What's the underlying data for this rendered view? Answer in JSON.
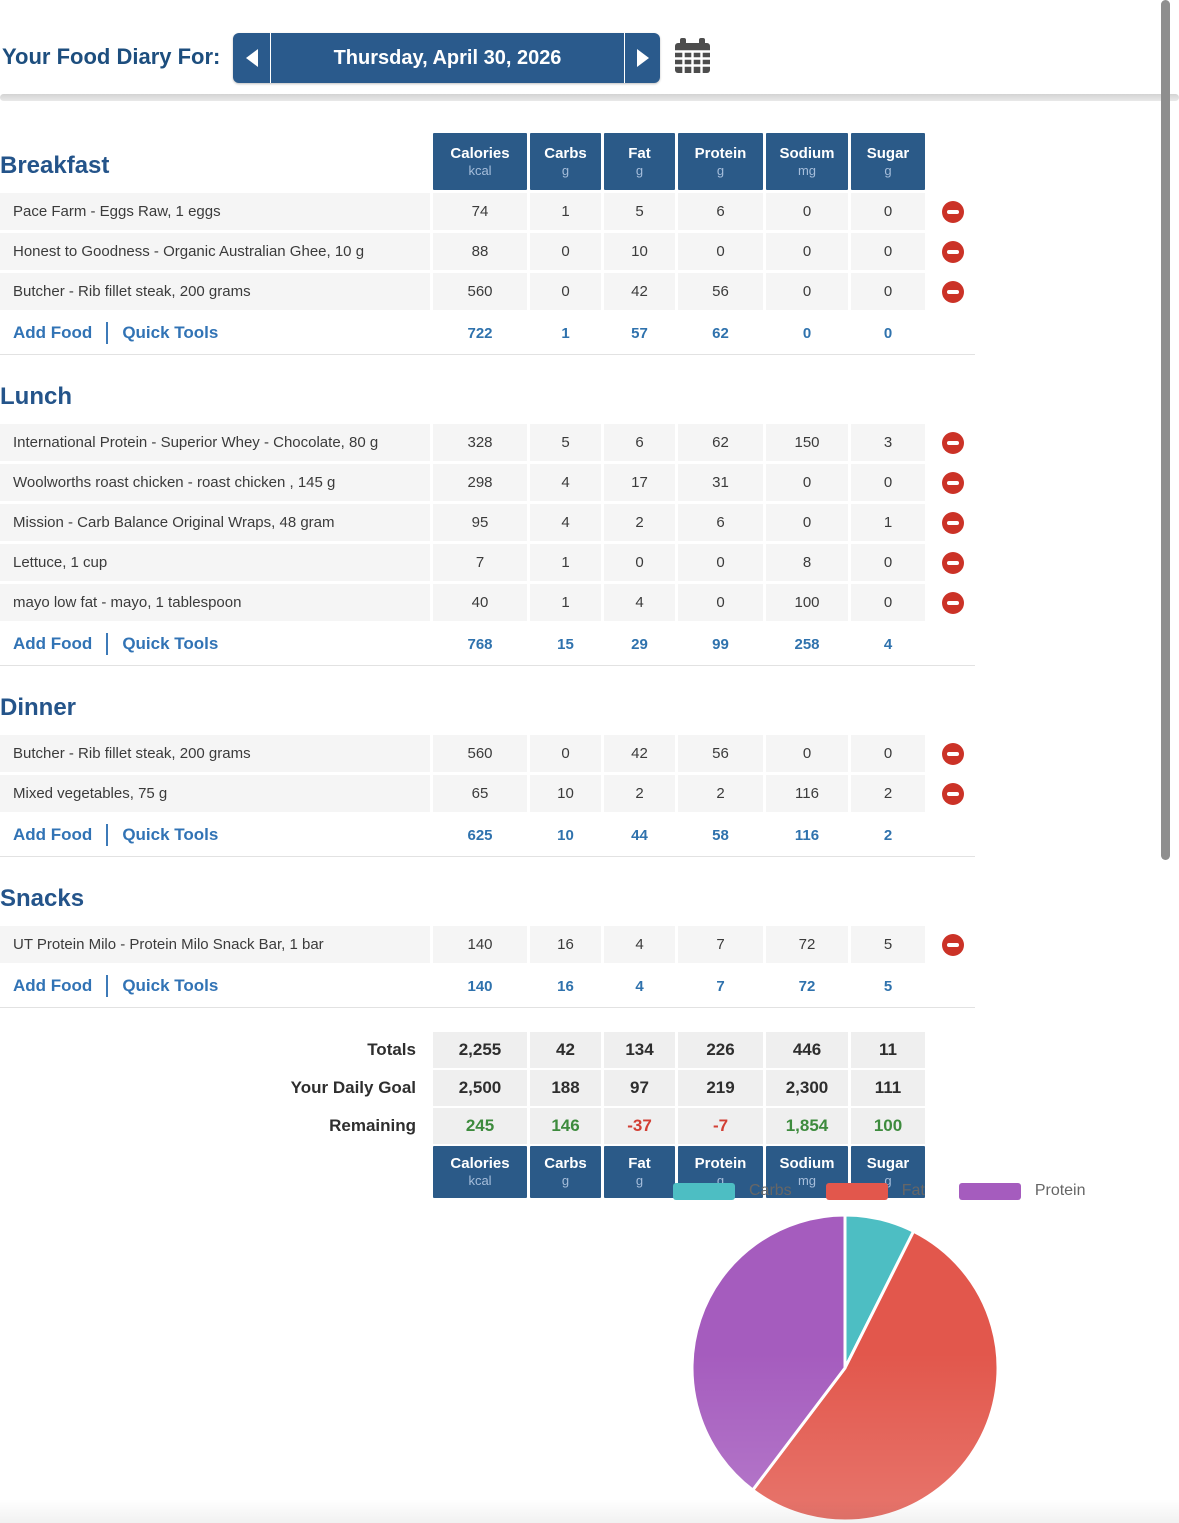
{
  "header": {
    "title": "Your Food Diary For:",
    "date_display": "Thursday, April 30, 2026",
    "prev_icon": "left-arrow",
    "next_icon": "right-arrow",
    "calendar_icon": "calendar",
    "accent_color": "#2a5a8c"
  },
  "columns": [
    {
      "label": "Calories",
      "unit": "kcal"
    },
    {
      "label": "Carbs",
      "unit": "g"
    },
    {
      "label": "Fat",
      "unit": "g"
    },
    {
      "label": "Protein",
      "unit": "g"
    },
    {
      "label": "Sodium",
      "unit": "mg"
    },
    {
      "label": "Sugar",
      "unit": "g"
    }
  ],
  "links": {
    "add_food": "Add Food",
    "quick_tools": "Quick Tools"
  },
  "meals": [
    {
      "name": "Breakfast",
      "items": [
        {
          "name": "Pace Farm - Eggs Raw, 1 eggs",
          "values": [
            "74",
            "1",
            "5",
            "6",
            "0",
            "0"
          ]
        },
        {
          "name": "Honest to Goodness - Organic Australian Ghee, 10 g",
          "values": [
            "88",
            "0",
            "10",
            "0",
            "0",
            "0"
          ]
        },
        {
          "name": "Butcher - Rib fillet steak, 200 grams",
          "values": [
            "560",
            "0",
            "42",
            "56",
            "0",
            "0"
          ]
        }
      ],
      "totals": [
        "722",
        "1",
        "57",
        "62",
        "0",
        "0"
      ]
    },
    {
      "name": "Lunch",
      "items": [
        {
          "name": "International Protein - Superior Whey - Chocolate, 80 g",
          "values": [
            "328",
            "5",
            "6",
            "62",
            "150",
            "3"
          ]
        },
        {
          "name": "Woolworths roast chicken - roast chicken , 145 g",
          "values": [
            "298",
            "4",
            "17",
            "31",
            "0",
            "0"
          ]
        },
        {
          "name": "Mission - Carb Balance Original Wraps, 48 gram",
          "values": [
            "95",
            "4",
            "2",
            "6",
            "0",
            "1"
          ]
        },
        {
          "name": "Lettuce, 1 cup",
          "values": [
            "7",
            "1",
            "0",
            "0",
            "8",
            "0"
          ]
        },
        {
          "name": "mayo low fat - mayo, 1 tablespoon",
          "values": [
            "40",
            "1",
            "4",
            "0",
            "100",
            "0"
          ]
        }
      ],
      "totals": [
        "768",
        "15",
        "29",
        "99",
        "258",
        "4"
      ]
    },
    {
      "name": "Dinner",
      "items": [
        {
          "name": "Butcher - Rib fillet steak, 200 grams",
          "values": [
            "560",
            "0",
            "42",
            "56",
            "0",
            "0"
          ]
        },
        {
          "name": "Mixed vegetables, 75 g",
          "values": [
            "65",
            "10",
            "2",
            "2",
            "116",
            "2"
          ]
        }
      ],
      "totals": [
        "625",
        "10",
        "44",
        "58",
        "116",
        "2"
      ]
    },
    {
      "name": "Snacks",
      "items": [
        {
          "name": "UT Protein Milo - Protein Milo Snack Bar, 1 bar",
          "values": [
            "140",
            "16",
            "4",
            "7",
            "72",
            "5"
          ]
        }
      ],
      "totals": [
        "140",
        "16",
        "4",
        "7",
        "72",
        "5"
      ]
    }
  ],
  "summary": {
    "rows": [
      {
        "label": "Totals",
        "values": [
          {
            "text": "2,255",
            "tone": "plain"
          },
          {
            "text": "42",
            "tone": "plain"
          },
          {
            "text": "134",
            "tone": "plain"
          },
          {
            "text": "226",
            "tone": "plain"
          },
          {
            "text": "446",
            "tone": "plain"
          },
          {
            "text": "11",
            "tone": "plain"
          }
        ]
      },
      {
        "label": "Your Daily Goal",
        "values": [
          {
            "text": "2,500",
            "tone": "plain"
          },
          {
            "text": "188",
            "tone": "plain"
          },
          {
            "text": "97",
            "tone": "plain"
          },
          {
            "text": "219",
            "tone": "plain"
          },
          {
            "text": "2,300",
            "tone": "plain"
          },
          {
            "text": "111",
            "tone": "plain"
          }
        ]
      },
      {
        "label": "Remaining",
        "values": [
          {
            "text": "245",
            "tone": "pos"
          },
          {
            "text": "146",
            "tone": "pos"
          },
          {
            "text": "-37",
            "tone": "neg"
          },
          {
            "text": "-7",
            "tone": "neg"
          },
          {
            "text": "1,854",
            "tone": "pos"
          },
          {
            "text": "100",
            "tone": "pos"
          }
        ]
      }
    ]
  },
  "chart_data": {
    "type": "pie",
    "title": "",
    "legend_position": "top",
    "start_angle_deg": -90,
    "direction": "clockwise",
    "slices": [
      {
        "label": "Carbs",
        "grams": 42,
        "percent": 7.4,
        "color": "#4dbec3"
      },
      {
        "label": "Fat",
        "grams": 134,
        "percent": 52.9,
        "color": "#e2574c"
      },
      {
        "label": "Protein",
        "grams": 226,
        "percent": 39.7,
        "color": "#a55cbe"
      }
    ]
  },
  "status_colors": {
    "positive": "#3d8b3d",
    "negative": "#d23f34"
  }
}
